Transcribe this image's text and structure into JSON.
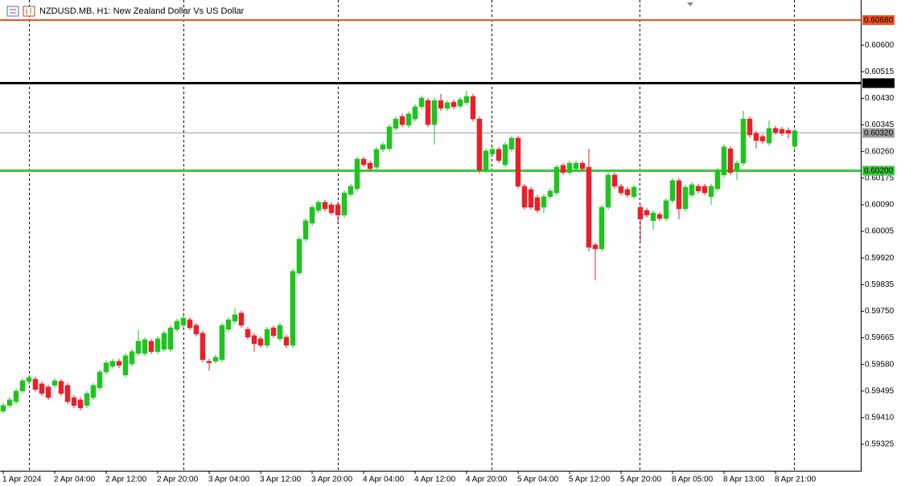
{
  "chart_data": {
    "type": "candlestick",
    "title": "NZDUSD.MB, H1:  New Zealand Dollar Vs US Dollar",
    "up_color": "#1fc41f",
    "down_color": "#e8202a",
    "categories": [
      "1 Apr 2024",
      null,
      null,
      null,
      null,
      null,
      null,
      null,
      "2 Apr 04:00",
      null,
      null,
      null,
      null,
      null,
      null,
      null,
      "2 Apr 12:00",
      null,
      null,
      null,
      null,
      null,
      null,
      null,
      "2 Apr 20:00",
      null,
      null,
      null,
      null,
      null,
      null,
      null,
      "3 Apr 04:00",
      null,
      null,
      null,
      null,
      null,
      null,
      null,
      "3 Apr 12:00",
      null,
      null,
      null,
      null,
      null,
      null,
      null,
      "3 Apr 20:00",
      null,
      null,
      null,
      null,
      null,
      null,
      null,
      "4 Apr 04:00",
      null,
      null,
      null,
      null,
      null,
      null,
      null,
      "4 Apr 12:00",
      null,
      null,
      null,
      null,
      null,
      null,
      null,
      "4 Apr 20:00",
      null,
      null,
      null,
      null,
      null,
      null,
      null,
      "5 Apr 04:00",
      null,
      null,
      null,
      null,
      null,
      null,
      null,
      "5 Apr 12:00",
      null,
      null,
      null,
      null,
      null,
      null,
      null,
      "5 Apr 20:00",
      null,
      null,
      null,
      null,
      null,
      null,
      null,
      "8 Apr 05:00",
      null,
      null,
      null,
      null,
      null,
      null,
      null,
      "8 Apr 13:00",
      null,
      null,
      null,
      null,
      null,
      null,
      null,
      "8 Apr 21:00",
      null,
      null,
      null
    ],
    "open": [
      0.59431,
      0.59449,
      0.59461,
      0.59495,
      0.59526,
      0.59533,
      0.59518,
      0.59508,
      0.59513,
      0.59526,
      0.59513,
      0.59474,
      0.59467,
      0.59449,
      0.59474,
      0.59505,
      0.59556,
      0.59574,
      0.5959,
      0.59546,
      0.59582,
      0.59615,
      0.59615,
      0.59654,
      0.59621,
      0.59628,
      0.59628,
      0.59692,
      0.59705,
      0.59723,
      0.59705,
      0.5968,
      0.5959,
      0.5959,
      0.59595,
      0.59692,
      0.59718,
      0.59744,
      0.59692,
      0.59672,
      0.59662,
      0.59641,
      0.59697,
      0.59662,
      0.59667,
      0.59641,
      0.59872,
      0.5998,
      0.60031,
      0.60072,
      0.60098,
      0.6009,
      0.6009,
      0.60057,
      0.60123,
      0.60141,
      0.60236,
      0.60223,
      0.6021,
      0.60267,
      0.60269,
      0.60334,
      0.60372,
      0.60344,
      0.60364,
      0.60403,
      0.60423,
      0.60346,
      0.60423,
      0.60398,
      0.60418,
      0.60405,
      0.60416,
      0.60436,
      0.60364,
      0.602,
      0.60252,
      0.60267,
      0.60218,
      0.60267,
      0.60303,
      0.60149,
      0.60139,
      0.60113,
      0.60082,
      0.60116,
      0.60128,
      0.60216,
      0.60193,
      0.60205,
      0.60223,
      0.6021,
      0.59962,
      0.59949,
      0.60082,
      0.60185,
      0.60149,
      0.60139,
      0.60116,
      0.60082,
      0.60072,
      0.60039,
      0.60059,
      0.60046,
      0.60103,
      0.60167,
      0.60077,
      0.60121,
      0.60149,
      0.60149,
      0.60116,
      0.60141,
      0.60185,
      0.60269,
      0.60198,
      0.60223,
      0.60364,
      0.60318,
      0.60308,
      0.60287,
      0.60334,
      0.60331,
      0.60328,
      0.60277
    ],
    "high": [
      0.59457,
      0.59475,
      0.59503,
      0.59536,
      0.59546,
      0.59541,
      0.59526,
      0.59516,
      0.59536,
      0.59534,
      0.59521,
      0.59482,
      0.59475,
      0.59495,
      0.59521,
      0.59564,
      0.59593,
      0.59598,
      0.59598,
      0.59616,
      0.59629,
      0.5969,
      0.59667,
      0.59662,
      0.5967,
      0.59688,
      0.59705,
      0.59726,
      0.59736,
      0.59731,
      0.59713,
      0.59688,
      0.59598,
      0.59611,
      0.59713,
      0.59731,
      0.5976,
      0.59752,
      0.597,
      0.5968,
      0.5967,
      0.597,
      0.59705,
      0.59713,
      0.59675,
      0.59885,
      0.59988,
      0.60047,
      0.6009,
      0.60106,
      0.60106,
      0.60098,
      0.60098,
      0.60136,
      0.60157,
      0.60244,
      0.60244,
      0.60231,
      0.60275,
      0.6029,
      0.60347,
      0.60372,
      0.6038,
      0.60388,
      0.60411,
      0.60439,
      0.60431,
      0.60431,
      0.60444,
      0.60424,
      0.60426,
      0.60434,
      0.60454,
      0.60444,
      0.60372,
      0.6027,
      0.60275,
      0.60275,
      0.6029,
      0.60311,
      0.60311,
      0.60157,
      0.60147,
      0.60121,
      0.60124,
      0.60142,
      0.60218,
      0.60224,
      0.60231,
      0.60231,
      0.60231,
      0.60269,
      0.5997,
      0.6009,
      0.60193,
      0.60193,
      0.60157,
      0.60147,
      0.60154,
      0.6009,
      0.6008,
      0.60072,
      0.60067,
      0.60111,
      0.60175,
      0.60175,
      0.60154,
      0.60162,
      0.60157,
      0.60157,
      0.60157,
      0.60208,
      0.60283,
      0.60277,
      0.60231,
      0.6039,
      0.60372,
      0.60326,
      0.60316,
      0.6036,
      0.60342,
      0.60339,
      0.60337,
      0.60334
    ],
    "low": [
      0.59423,
      0.59441,
      0.59453,
      0.59487,
      0.59518,
      0.59492,
      0.59479,
      0.59466,
      0.59505,
      0.59479,
      0.59453,
      0.59441,
      0.59433,
      0.59441,
      0.59466,
      0.59497,
      0.59548,
      0.59566,
      0.59569,
      0.59538,
      0.59574,
      0.59607,
      0.59607,
      0.59613,
      0.59613,
      0.5962,
      0.5962,
      0.59684,
      0.59697,
      0.59689,
      0.59669,
      0.59587,
      0.5956,
      0.59582,
      0.59587,
      0.59684,
      0.5971,
      0.59697,
      0.59659,
      0.5962,
      0.59633,
      0.59633,
      0.59664,
      0.59654,
      0.59633,
      0.59633,
      0.59864,
      0.59972,
      0.60023,
      0.60064,
      0.60069,
      0.60056,
      0.6003,
      0.60049,
      0.60115,
      0.60133,
      0.6021,
      0.60197,
      0.60202,
      0.60259,
      0.60261,
      0.60326,
      0.60338,
      0.60336,
      0.60356,
      0.60395,
      0.60338,
      0.60282,
      0.6039,
      0.6039,
      0.60395,
      0.60397,
      0.60408,
      0.60356,
      0.6019,
      0.60192,
      0.60244,
      0.60223,
      0.6021,
      0.60259,
      0.60141,
      0.60074,
      0.60074,
      0.60064,
      0.60064,
      0.60108,
      0.6012,
      0.60185,
      0.60185,
      0.60197,
      0.60197,
      0.59941,
      0.59849,
      0.59941,
      0.60074,
      0.60141,
      0.6012,
      0.60113,
      0.60108,
      0.5997,
      0.60049,
      0.6001,
      0.60038,
      0.60038,
      0.60095,
      0.60044,
      0.60069,
      0.60113,
      0.60126,
      0.6012,
      0.6009,
      0.60133,
      0.60177,
      0.60185,
      0.6017,
      0.60215,
      0.60305,
      0.6027,
      0.60285,
      0.60279,
      0.60313,
      0.6031,
      0.603,
      0.60269
    ],
    "close": [
      0.59449,
      0.59467,
      0.59495,
      0.59528,
      0.59538,
      0.595,
      0.59487,
      0.59474,
      0.59528,
      0.59487,
      0.59461,
      0.59449,
      0.59441,
      0.59487,
      0.59513,
      0.59556,
      0.59585,
      0.5959,
      0.59577,
      0.59608,
      0.59621,
      0.59654,
      0.59659,
      0.59621,
      0.59662,
      0.5968,
      0.59697,
      0.59718,
      0.59728,
      0.59697,
      0.59677,
      0.59595,
      0.59585,
      0.59603,
      0.59705,
      0.59723,
      0.59739,
      0.59705,
      0.59667,
      0.59646,
      0.59641,
      0.59692,
      0.59672,
      0.59705,
      0.59641,
      0.59877,
      0.5998,
      0.60039,
      0.60082,
      0.60098,
      0.60077,
      0.60064,
      0.60057,
      0.60128,
      0.60149,
      0.60236,
      0.60218,
      0.60205,
      0.60267,
      0.60282,
      0.60339,
      0.60364,
      0.60346,
      0.6038,
      0.60403,
      0.60431,
      0.60346,
      0.60423,
      0.60398,
      0.60416,
      0.60403,
      0.60426,
      0.60436,
      0.60364,
      0.602,
      0.60262,
      0.60267,
      0.60231,
      0.60282,
      0.60303,
      0.60149,
      0.60082,
      0.60082,
      0.60072,
      0.60116,
      0.60134,
      0.6021,
      0.60193,
      0.60223,
      0.60223,
      0.60205,
      0.59954,
      0.59949,
      0.60082,
      0.60185,
      0.60149,
      0.60128,
      0.60121,
      0.60146,
      0.60044,
      0.60057,
      0.60064,
      0.60046,
      0.60103,
      0.60167,
      0.60077,
      0.60146,
      0.60154,
      0.60134,
      0.60128,
      0.60149,
      0.602,
      0.60275,
      0.60193,
      0.60223,
      0.60364,
      0.60313,
      0.60295,
      0.60293,
      0.60334,
      0.60321,
      0.60318,
      0.60318,
      0.60326
    ],
    "ylim": [
      0.59243,
      0.60744
    ],
    "yticks": [
      {
        "value": 0.606,
        "label": "0.60600"
      },
      0.60515,
      {
        "value": 0.6043,
        "label": "0.60430"
      },
      0.60345,
      {
        "value": 0.6026,
        "label": "0.60260"
      },
      0.60175,
      {
        "value": 0.6009,
        "label": "0.60090"
      },
      0.60005,
      {
        "value": 0.5992,
        "label": "0.59920"
      },
      0.59835,
      {
        "value": 0.5975,
        "label": "0.59750"
      },
      0.59665,
      {
        "value": 0.5958,
        "label": "0.59580"
      },
      0.59495,
      {
        "value": 0.5941,
        "label": "0.59410"
      },
      0.59325
    ],
    "levels": [
      {
        "value": 0.6068,
        "label": "0.60680",
        "color": "#f0521e",
        "width": 2
      },
      {
        "value": 0.6048,
        "label": "0.60480",
        "color": "#000000",
        "width": 3
      },
      {
        "value": 0.6032,
        "label": "0.60320",
        "color": "#a0a0a0",
        "width": 1
      },
      {
        "value": 0.602,
        "label": "0.60200",
        "color": "#3cc83c",
        "width": 3
      }
    ]
  }
}
